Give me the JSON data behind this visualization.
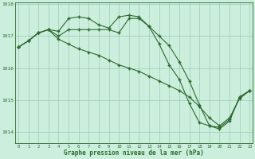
{
  "line1": {
    "x": [
      0,
      1,
      2,
      3,
      4,
      5,
      6,
      7,
      8,
      9,
      10,
      11,
      12,
      13,
      14,
      15,
      16,
      17,
      18,
      19,
      20,
      21,
      22,
      23
    ],
    "y": [
      1016.65,
      1016.85,
      1017.1,
      1017.2,
      1017.15,
      1017.55,
      1017.6,
      1017.55,
      1017.35,
      1017.25,
      1017.6,
      1017.65,
      1017.6,
      1017.3,
      1016.75,
      1016.1,
      1015.65,
      1014.9,
      1014.3,
      1014.2,
      1014.15,
      1014.4,
      1015.1,
      1015.3
    ]
  },
  "line2": {
    "x": [
      0,
      1,
      2,
      3,
      4,
      5,
      6,
      7,
      8,
      9,
      10,
      11,
      12,
      13,
      14,
      15,
      16,
      17,
      18,
      19,
      20,
      21,
      22,
      23
    ],
    "y": [
      1016.65,
      1016.85,
      1017.1,
      1017.2,
      1017.0,
      1017.2,
      1017.2,
      1017.2,
      1017.2,
      1017.2,
      1017.1,
      1017.55,
      1017.55,
      1017.3,
      1017.0,
      1016.7,
      1016.2,
      1015.6,
      1014.85,
      1014.2,
      1014.1,
      1014.35,
      1015.1,
      1015.3
    ]
  },
  "line3": {
    "x": [
      0,
      1,
      2,
      3,
      4,
      5,
      6,
      7,
      8,
      9,
      10,
      11,
      12,
      13,
      14,
      15,
      16,
      17,
      18,
      19,
      20,
      21,
      22,
      23
    ],
    "y": [
      1016.65,
      1016.85,
      1017.1,
      1017.2,
      1016.9,
      1016.75,
      1016.6,
      1016.5,
      1016.4,
      1016.25,
      1016.1,
      1016.0,
      1015.9,
      1015.75,
      1015.6,
      1015.45,
      1015.3,
      1015.1,
      1014.8,
      1014.45,
      1014.2,
      1014.45,
      1015.05,
      1015.3
    ]
  },
  "line_color": "#2d6a2d",
  "bg_color": "#cceedd",
  "grid_color": "#99ccbb",
  "axis_color": "#2d6a2d",
  "xlabel": "Graphe pression niveau de la mer (hPa)",
  "ylim": [
    1013.65,
    1018.05
  ],
  "xlim": [
    -0.3,
    23.3
  ],
  "yticks": [
    1014,
    1015,
    1016,
    1017,
    1018
  ],
  "xticks": [
    0,
    1,
    2,
    3,
    4,
    5,
    6,
    7,
    8,
    9,
    10,
    11,
    12,
    13,
    14,
    15,
    16,
    17,
    18,
    19,
    20,
    21,
    22,
    23
  ]
}
